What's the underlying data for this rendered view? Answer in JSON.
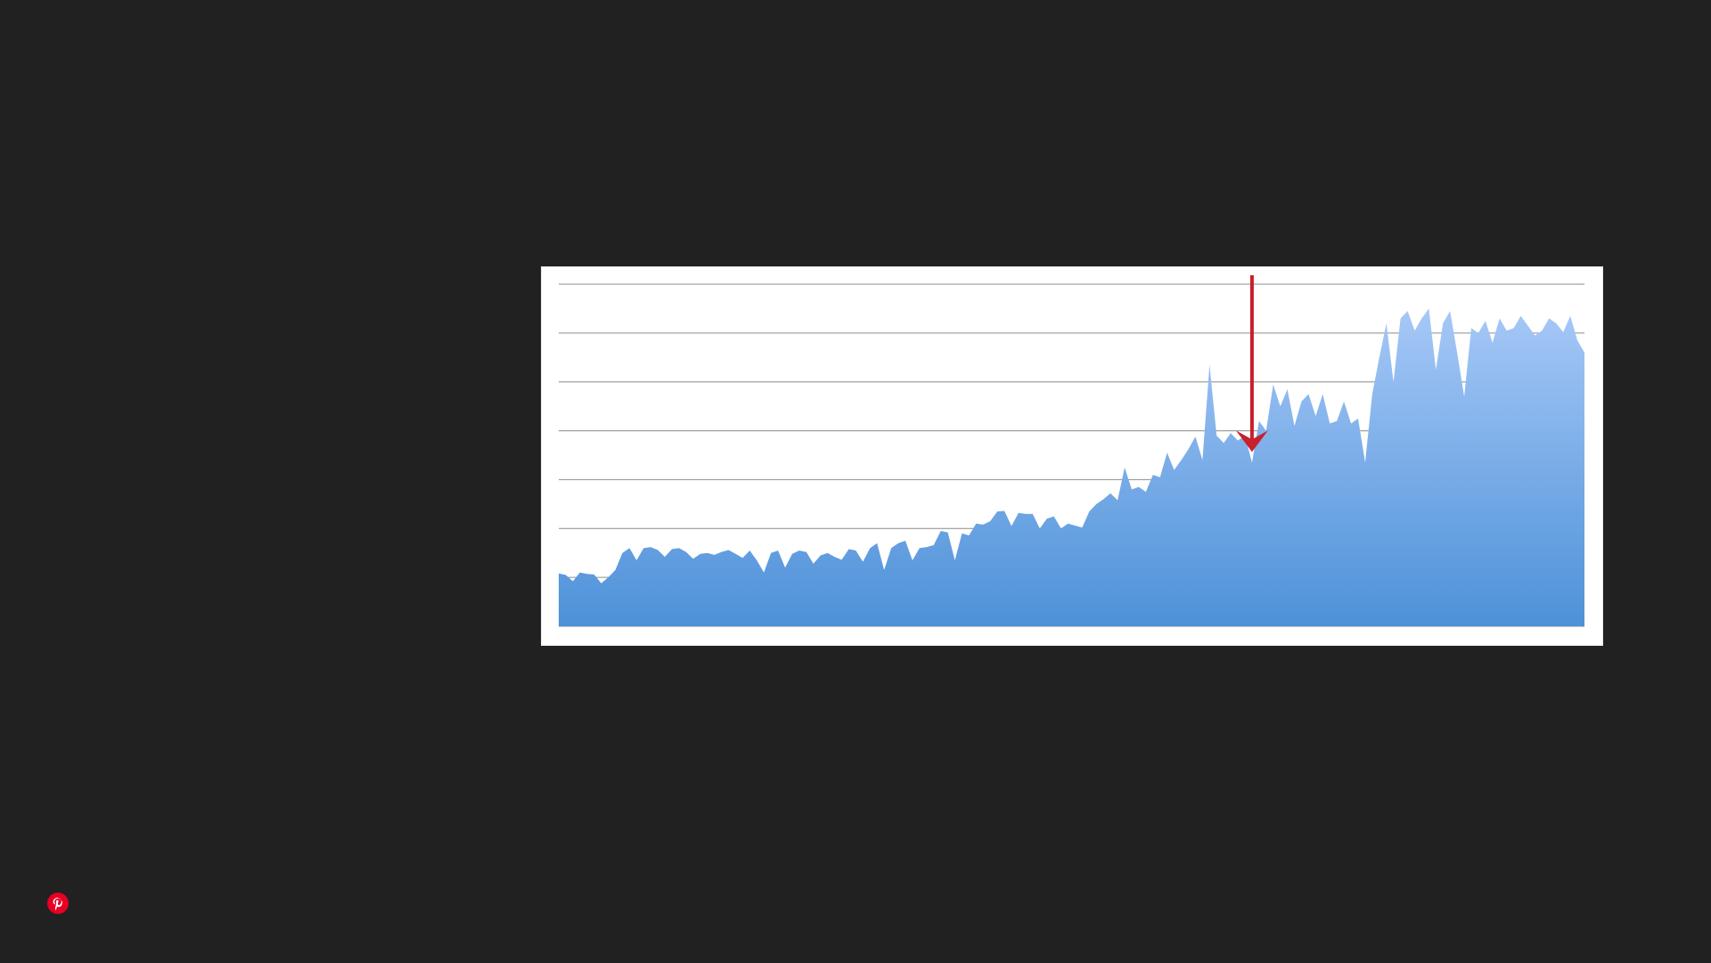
{
  "colors": {
    "background": "#212121",
    "card": "#ffffff",
    "area_top": "#a6c8f7",
    "area_bottom": "#4d91d8",
    "gridline": "#8c8c8c",
    "arrow": "#c8202c",
    "pinterest": "#e60023"
  },
  "icons": {
    "pin_button": "pinterest-icon",
    "marker": "down-arrow-icon"
  },
  "chart_data": {
    "type": "area",
    "title": "",
    "xlabel": "",
    "ylabel": "",
    "ylim": [
      0,
      7
    ],
    "grid": true,
    "gridlines": [
      1,
      2,
      3,
      4,
      5,
      6,
      7
    ],
    "legend": "none",
    "marker_index": 98,
    "series": [
      {
        "values": [
          1.08,
          1.05,
          0.92,
          1.1,
          1.07,
          1.06,
          0.88,
          1.0,
          1.15,
          1.5,
          1.6,
          1.35,
          1.6,
          1.62,
          1.56,
          1.42,
          1.58,
          1.6,
          1.52,
          1.38,
          1.48,
          1.5,
          1.46,
          1.52,
          1.56,
          1.48,
          1.4,
          1.55,
          1.35,
          1.1,
          1.5,
          1.55,
          1.2,
          1.48,
          1.55,
          1.52,
          1.28,
          1.45,
          1.5,
          1.42,
          1.36,
          1.58,
          1.55,
          1.32,
          1.6,
          1.7,
          1.15,
          1.6,
          1.7,
          1.75,
          1.35,
          1.6,
          1.62,
          1.66,
          1.95,
          1.92,
          1.35,
          1.9,
          1.86,
          2.1,
          2.08,
          2.15,
          2.35,
          2.36,
          2.05,
          2.32,
          2.3,
          2.3,
          2.0,
          2.2,
          2.25,
          2.0,
          2.1,
          2.06,
          2.02,
          2.35,
          2.5,
          2.6,
          2.72,
          2.58,
          3.25,
          2.8,
          2.85,
          2.75,
          3.1,
          3.05,
          3.55,
          3.2,
          3.4,
          3.62,
          3.88,
          3.4,
          5.35,
          3.9,
          3.75,
          3.95,
          3.8,
          3.9,
          3.35,
          4.2,
          4.0,
          4.95,
          4.5,
          4.85,
          4.1,
          4.6,
          4.75,
          4.3,
          4.75,
          4.15,
          4.2,
          4.6,
          4.15,
          4.25,
          3.35,
          4.75,
          5.5,
          6.2,
          5.0,
          6.3,
          6.45,
          6.05,
          6.3,
          6.5,
          5.25,
          6.2,
          6.45,
          5.6,
          4.7,
          6.1,
          6.0,
          6.25,
          5.8,
          6.3,
          6.05,
          6.1,
          6.35,
          6.15,
          5.95,
          6.05,
          6.3,
          6.2,
          6.02,
          6.35,
          5.85,
          5.6
        ]
      }
    ]
  }
}
